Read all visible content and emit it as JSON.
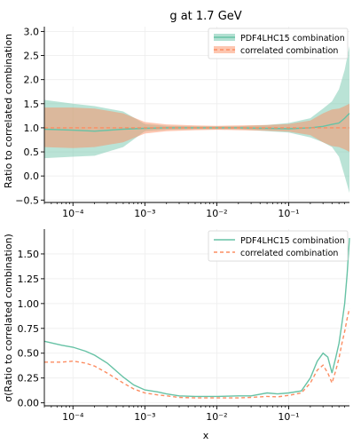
{
  "chart_data": [
    {
      "type": "area",
      "title": "g at 1.7 GeV",
      "ylabel": "Ratio to correlated combination",
      "xlabel": "",
      "xscale": "log",
      "xlim": [
        4e-05,
        0.7
      ],
      "ylim": [
        -0.55,
        3.1
      ],
      "yticks": [
        "−0.5",
        "0.0",
        "0.5",
        "1.0",
        "1.5",
        "2.0",
        "2.5",
        "3.0"
      ],
      "ytick_values": [
        -0.5,
        0,
        0.5,
        1,
        1.5,
        2,
        2.5,
        3
      ],
      "xticks": [
        "10⁻⁴",
        "10⁻³",
        "10⁻²",
        "10⁻¹"
      ],
      "xtick_values": [
        0.0001,
        0.001,
        0.01,
        0.1
      ],
      "grid": true,
      "legend_position": "top-right",
      "series": [
        {
          "name": "PDF4LHC15 combination",
          "color": "#66c2a5",
          "style": "solid",
          "x": [
            4e-05,
            0.0001,
            0.0002,
            0.0005,
            0.001,
            0.002,
            0.005,
            0.01,
            0.02,
            0.05,
            0.1,
            0.2,
            0.3,
            0.4,
            0.5,
            0.6,
            0.7
          ],
          "y": [
            0.97,
            0.95,
            0.93,
            0.97,
            0.99,
            1.0,
            1.0,
            1.0,
            1.0,
            0.99,
            0.98,
            1.0,
            1.03,
            1.07,
            1.1,
            1.2,
            1.3
          ],
          "lower": [
            0.37,
            0.4,
            0.42,
            0.6,
            0.93,
            0.96,
            0.97,
            0.97,
            0.97,
            0.93,
            0.9,
            0.8,
            0.7,
            0.6,
            0.4,
            0.0,
            -0.35
          ],
          "upper": [
            1.58,
            1.5,
            1.45,
            1.34,
            1.08,
            1.04,
            1.03,
            1.03,
            1.03,
            1.06,
            1.1,
            1.2,
            1.4,
            1.55,
            1.8,
            2.2,
            2.7
          ]
        },
        {
          "name": "correlated combination",
          "color": "#fc8d62",
          "style": "dashed",
          "x": [
            4e-05,
            0.0001,
            0.0002,
            0.0005,
            0.001,
            0.002,
            0.005,
            0.01,
            0.02,
            0.05,
            0.1,
            0.2,
            0.3,
            0.4,
            0.5,
            0.6,
            0.7
          ],
          "y": [
            1.0,
            1.0,
            1.0,
            1.0,
            1.0,
            1.0,
            1.0,
            1.0,
            1.0,
            1.0,
            1.0,
            1.0,
            1.0,
            1.0,
            1.0,
            1.0,
            1.0
          ],
          "lower": [
            0.6,
            0.58,
            0.6,
            0.7,
            0.88,
            0.93,
            0.95,
            0.96,
            0.95,
            0.94,
            0.92,
            0.85,
            0.7,
            0.62,
            0.6,
            0.55,
            0.5
          ],
          "upper": [
            1.42,
            1.42,
            1.4,
            1.3,
            1.12,
            1.07,
            1.05,
            1.04,
            1.05,
            1.06,
            1.08,
            1.15,
            1.3,
            1.38,
            1.4,
            1.45,
            1.5
          ]
        }
      ]
    },
    {
      "type": "line",
      "title": "",
      "ylabel": "σ(Ratio to correlated combination)",
      "xlabel": "x",
      "xscale": "log",
      "xlim": [
        4e-05,
        0.7
      ],
      "ylim": [
        -0.03,
        1.75
      ],
      "yticks": [
        "0.00",
        "0.25",
        "0.50",
        "0.75",
        "1.00",
        "1.25",
        "1.50"
      ],
      "ytick_values": [
        0,
        0.25,
        0.5,
        0.75,
        1.0,
        1.25,
        1.5
      ],
      "xticks": [
        "10⁻⁴",
        "10⁻³",
        "10⁻²",
        "10⁻¹"
      ],
      "xtick_values": [
        0.0001,
        0.001,
        0.01,
        0.1
      ],
      "grid": true,
      "legend_position": "top-right",
      "series": [
        {
          "name": "PDF4LHC15 combination",
          "color": "#66c2a5",
          "style": "solid",
          "x": [
            4e-05,
            7e-05,
            0.0001,
            0.00015,
            0.0002,
            0.0003,
            0.0005,
            0.0007,
            0.001,
            0.0015,
            0.002,
            0.003,
            0.005,
            0.01,
            0.02,
            0.03,
            0.05,
            0.07,
            0.1,
            0.15,
            0.2,
            0.25,
            0.3,
            0.35,
            0.4,
            0.45,
            0.5,
            0.55,
            0.6,
            0.65,
            0.7
          ],
          "y": [
            0.62,
            0.58,
            0.56,
            0.52,
            0.48,
            0.4,
            0.26,
            0.18,
            0.13,
            0.11,
            0.09,
            0.07,
            0.065,
            0.065,
            0.07,
            0.07,
            0.1,
            0.09,
            0.1,
            0.12,
            0.25,
            0.42,
            0.5,
            0.46,
            0.3,
            0.45,
            0.6,
            0.8,
            1.0,
            1.3,
            1.66
          ]
        },
        {
          "name": "correlated combination",
          "color": "#fc8d62",
          "style": "dashed",
          "x": [
            4e-05,
            7e-05,
            0.0001,
            0.00015,
            0.0002,
            0.0003,
            0.0005,
            0.0007,
            0.001,
            0.0015,
            0.002,
            0.003,
            0.005,
            0.01,
            0.02,
            0.03,
            0.05,
            0.07,
            0.1,
            0.15,
            0.2,
            0.25,
            0.3,
            0.35,
            0.4,
            0.45,
            0.5,
            0.55,
            0.6,
            0.65,
            0.7
          ],
          "y": [
            0.41,
            0.41,
            0.42,
            0.4,
            0.37,
            0.3,
            0.2,
            0.14,
            0.1,
            0.08,
            0.07,
            0.055,
            0.05,
            0.05,
            0.05,
            0.055,
            0.065,
            0.06,
            0.075,
            0.1,
            0.2,
            0.33,
            0.38,
            0.3,
            0.2,
            0.32,
            0.45,
            0.6,
            0.72,
            0.85,
            0.95
          ]
        }
      ]
    }
  ]
}
